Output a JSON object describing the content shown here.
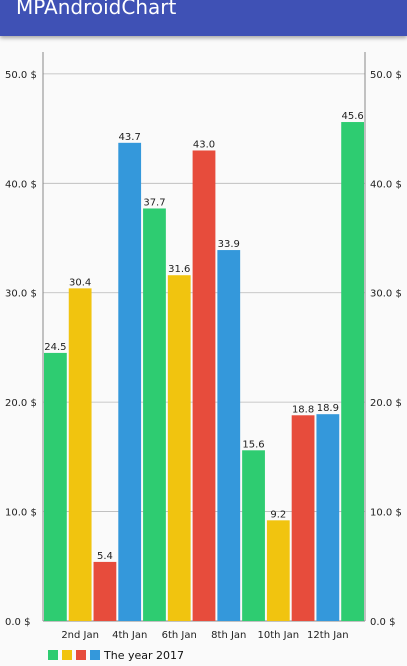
{
  "app": {
    "title": "MPAndroidChart"
  },
  "chart_data": {
    "type": "bar",
    "x": [
      1,
      2,
      3,
      4,
      5,
      6,
      7,
      8,
      9,
      10,
      11,
      12,
      13
    ],
    "values": [
      24.5,
      30.4,
      5.4,
      43.7,
      37.7,
      31.6,
      43.0,
      33.9,
      15.6,
      9.2,
      18.8,
      18.9,
      45.6
    ],
    "value_labels": [
      "24.5",
      "30.4",
      "5.4",
      "43.7",
      "37.7",
      "31.6",
      "43.0",
      "33.9",
      "15.6",
      "9.2",
      "18.8",
      "18.9",
      "45.6"
    ],
    "x_ticks": [
      {
        "x": 2,
        "label": "2nd Jan"
      },
      {
        "x": 4,
        "label": "4th Jan"
      },
      {
        "x": 6,
        "label": "6th Jan"
      },
      {
        "x": 8,
        "label": "8th Jan"
      },
      {
        "x": 10,
        "label": "10th Jan"
      },
      {
        "x": 12,
        "label": "12th Jan"
      }
    ],
    "ylim": [
      0,
      52
    ],
    "y_ticks": [
      {
        "value": 0,
        "label": "0.0 $"
      },
      {
        "value": 10,
        "label": "10.0 $"
      },
      {
        "value": 20,
        "label": "20.0 $"
      },
      {
        "value": 30,
        "label": "30.0 $"
      },
      {
        "value": 40,
        "label": "40.0 $"
      },
      {
        "value": 50,
        "label": "50.0 $"
      }
    ],
    "bar_colors": [
      "#2ecc71",
      "#f1c40f",
      "#e74c3c",
      "#3498db"
    ],
    "grid": "horizontal",
    "axes": "left-and-right",
    "legend": {
      "position": "bottom-left",
      "label": "The year 2017",
      "swatches": [
        "#2ecc71",
        "#f1c40f",
        "#e74c3c",
        "#3498db"
      ]
    }
  }
}
